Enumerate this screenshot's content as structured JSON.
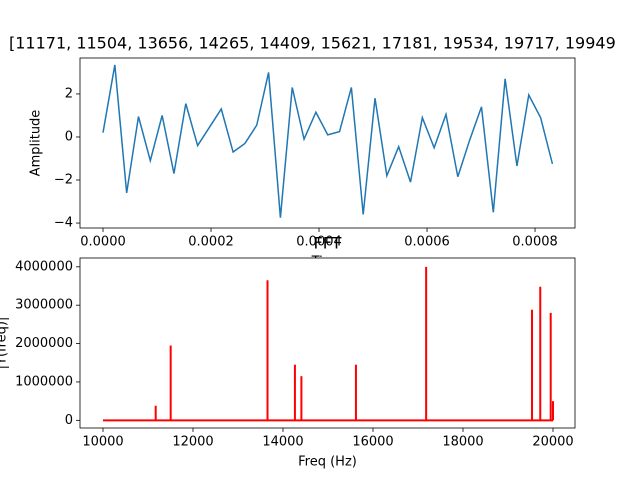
{
  "chart_data": [
    {
      "type": "line",
      "title": "[11171, 11504, 13656, 14265, 14409, 15621, 17181, 19534, 19717, 19949",
      "xlabel": "Time",
      "ylabel": "Amplitude",
      "x": [
        0,
        2.19e-05,
        4.38e-05,
        6.57e-05,
        8.76e-05,
        0.0001095,
        0.0001314,
        0.0001533,
        0.0001752,
        0.0001971,
        0.000219,
        0.0002409,
        0.0002628,
        0.0002847,
        0.0003066,
        0.0003285,
        0.0003504,
        0.0003723,
        0.0003942,
        0.0004161,
        0.000438,
        0.0004599,
        0.0004818,
        0.0005037,
        0.0005256,
        0.0005475,
        0.0005694,
        0.0005913,
        0.0006132,
        0.0006351,
        0.000657,
        0.0006789,
        0.0007008,
        0.0007227,
        0.0007446,
        0.0007665,
        0.0007884,
        0.0008103,
        0.0008322
      ],
      "series": [
        {
          "color": "#1f77b4",
          "values": [
            0.2,
            3.35,
            -2.6,
            0.95,
            -1.1,
            1.0,
            -1.7,
            1.55,
            -0.4,
            0.45,
            1.3,
            -0.7,
            -0.3,
            0.55,
            3.0,
            -3.75,
            2.3,
            -0.1,
            1.15,
            0.1,
            0.25,
            2.3,
            -3.6,
            1.8,
            -1.8,
            -0.45,
            -2.1,
            0.9,
            -0.5,
            1.05,
            -1.85,
            -0.15,
            1.4,
            -3.5,
            2.7,
            -1.35,
            1.95,
            0.9,
            -1.25
          ]
        }
      ],
      "xlim": [
        -4.26e-05,
        0.000874
      ],
      "xticks": [
        {
          "value": 0,
          "label": "0.0000"
        },
        {
          "value": 0.0002,
          "label": "0.0002"
        },
        {
          "value": 0.0004,
          "label": "0.0004"
        },
        {
          "value": 0.0006,
          "label": "0.0006"
        },
        {
          "value": 0.0008,
          "label": "0.0008"
        }
      ],
      "ylim": [
        -4.23,
        3.67
      ],
      "yticks": [
        {
          "value": -4,
          "label": "−4"
        },
        {
          "value": -2,
          "label": "−2"
        },
        0,
        2
      ]
    },
    {
      "type": "spectrum",
      "title": "FFT",
      "xlabel": "Freq (Hz)",
      "ylabel": "|Y(freq)|",
      "x": [
        10000,
        11171,
        11504,
        13656,
        14265,
        14409,
        15621,
        17181,
        19534,
        19717,
        19949,
        20000
      ],
      "series": [
        {
          "color": "#ff0000",
          "values": [
            0,
            380000,
            1950000,
            3650000,
            1450000,
            1150000,
            1450000,
            4000000,
            2880000,
            3480000,
            2800000,
            500000
          ]
        }
      ],
      "xlim": [
        9489,
        20489
      ],
      "xticks": [
        10000,
        12000,
        14000,
        16000,
        18000,
        20000
      ],
      "ylim": [
        -200000,
        4230000
      ],
      "yticks": [
        0,
        1000000,
        2000000,
        3000000,
        4000000
      ]
    }
  ]
}
